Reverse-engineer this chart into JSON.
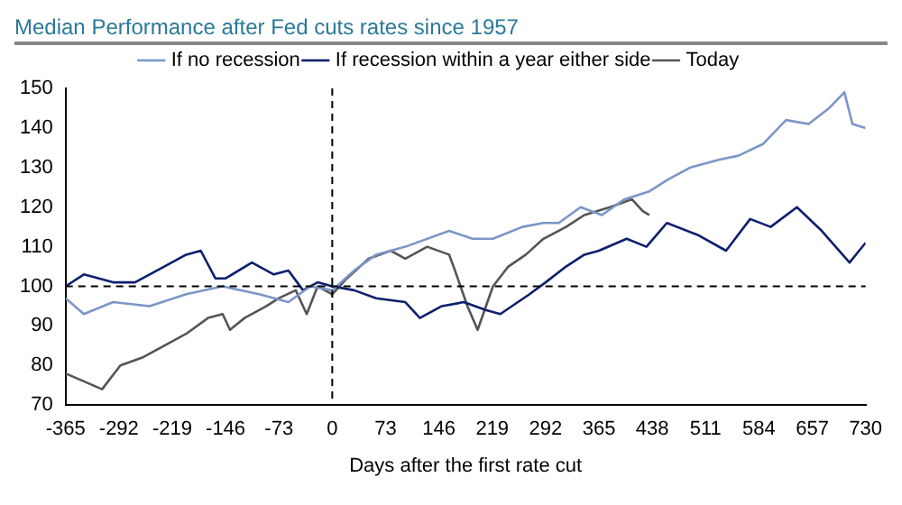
{
  "chart_data": {
    "type": "line",
    "title": "Median Performance after Fed cuts rates since 1957",
    "xlabel": "Days after the first rate cut",
    "xlim": [
      -365,
      730
    ],
    "ylim": [
      70,
      150
    ],
    "xticks": [
      -365,
      -292,
      -219,
      -146,
      -73,
      0,
      73,
      146,
      219,
      292,
      365,
      438,
      511,
      584,
      657,
      730
    ],
    "yticks": [
      70,
      80,
      90,
      100,
      110,
      120,
      130,
      140,
      150
    ],
    "grid": false,
    "legend": "top",
    "marker": "none",
    "line_style": "solid",
    "ref_lines": [
      {
        "axis": "x",
        "value": 0,
        "line_style": "dashed",
        "color": "#000000"
      },
      {
        "axis": "y",
        "value": 100,
        "line_style": "dashed",
        "color": "#000000"
      }
    ],
    "series": [
      {
        "name": "If no recession",
        "color": "#7b96c8",
        "x": [
          -365,
          -340,
          -300,
          -250,
          -200,
          -150,
          -100,
          -60,
          -30,
          0,
          30,
          60,
          100,
          160,
          192,
          220,
          260,
          289,
          310,
          340,
          369,
          400,
          434,
          460,
          490,
          530,
          556,
          590,
          621,
          652,
          680,
          701,
          712,
          730
        ],
        "values": [
          97,
          93,
          96,
          95,
          98,
          100,
          98,
          96,
          100,
          99,
          104,
          108,
          110,
          114,
          112,
          112,
          115,
          116,
          116,
          120,
          118,
          122,
          124,
          127,
          130,
          132,
          133,
          136,
          142,
          141,
          145,
          149,
          141,
          140
        ]
      },
      {
        "name": "If recession within a year either side",
        "color": "#0d1f6e",
        "x": [
          -365,
          -340,
          -300,
          -270,
          -230,
          -200,
          -180,
          -160,
          -146,
          -110,
          -80,
          -60,
          -40,
          -20,
          0,
          30,
          60,
          100,
          120,
          150,
          180,
          210,
          230,
          270,
          292,
          320,
          345,
          365,
          403,
          430,
          458,
          500,
          539,
          572,
          600,
          636,
          670,
          708,
          730
        ],
        "values": [
          100,
          103,
          101,
          101,
          105,
          108,
          109,
          102,
          102,
          106,
          103,
          104,
          99,
          101,
          100,
          99,
          97,
          96,
          92,
          95,
          96,
          94,
          93,
          98,
          101,
          105,
          108,
          109,
          112,
          110,
          116,
          113,
          109,
          117,
          115,
          120,
          114,
          106,
          111
        ]
      },
      {
        "name": "Today",
        "color": "#555555",
        "x": [
          -365,
          -340,
          -315,
          -290,
          -260,
          -230,
          -200,
          -170,
          -150,
          -140,
          -120,
          -90,
          -73,
          -50,
          -35,
          -20,
          0,
          20,
          50,
          80,
          100,
          130,
          160,
          168,
          185,
          199,
          220,
          241,
          265,
          289,
          320,
          345,
          380,
          410,
          425,
          434
        ],
        "values": [
          78,
          76,
          74,
          80,
          82,
          85,
          88,
          92,
          93,
          89,
          92,
          95,
          97,
          99,
          93,
          100,
          98,
          102,
          107,
          109,
          107,
          110,
          108,
          104,
          95,
          89,
          100,
          105,
          108,
          112,
          115,
          118,
          120,
          122,
          119,
          118
        ]
      }
    ]
  }
}
